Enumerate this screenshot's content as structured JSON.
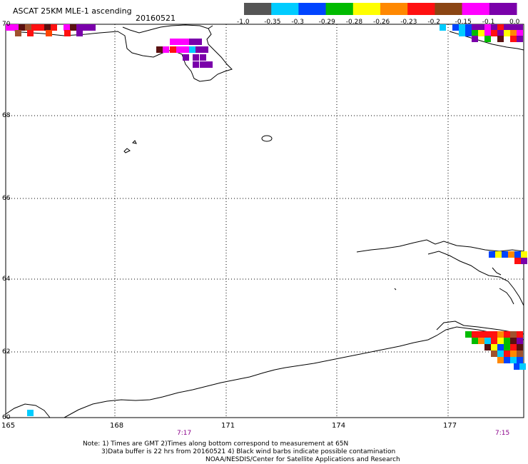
{
  "header": {
    "title": "ASCAT 25KM MLE-1 ascending",
    "date": "20160521"
  },
  "colorbar": {
    "colors": [
      "#555555",
      "#00ccff",
      "#0044ff",
      "#00bb00",
      "#ffff00",
      "#ff8800",
      "#ff1010",
      "#8b4513",
      "#ff00ff",
      "#7a00aa"
    ],
    "labels": [
      "-1.0",
      "-0.35",
      "-0.3",
      "-0.29",
      "-0.28",
      "-0.26",
      "-0.23",
      "-0.2",
      "-0.15",
      "-0.1",
      "0.0"
    ]
  },
  "axes": {
    "lat_labels": [
      "70",
      "68",
      "66",
      "64",
      "62",
      "60"
    ],
    "lon_labels": [
      "165",
      "168",
      "171",
      "174",
      "177"
    ]
  },
  "times": {
    "left": "7:17",
    "right": "7:15"
  },
  "notes": {
    "line1": "Note: 1) Times are GMT 2)Times along bottom correspond to measurement at 65N",
    "line2": "3)Data buffer is 22 hrs from 20160521 4) Black wind barbs indicate possible contamination",
    "line3": "NOAA/NESDIS/Center for Satellite Applications and Research"
  }
}
